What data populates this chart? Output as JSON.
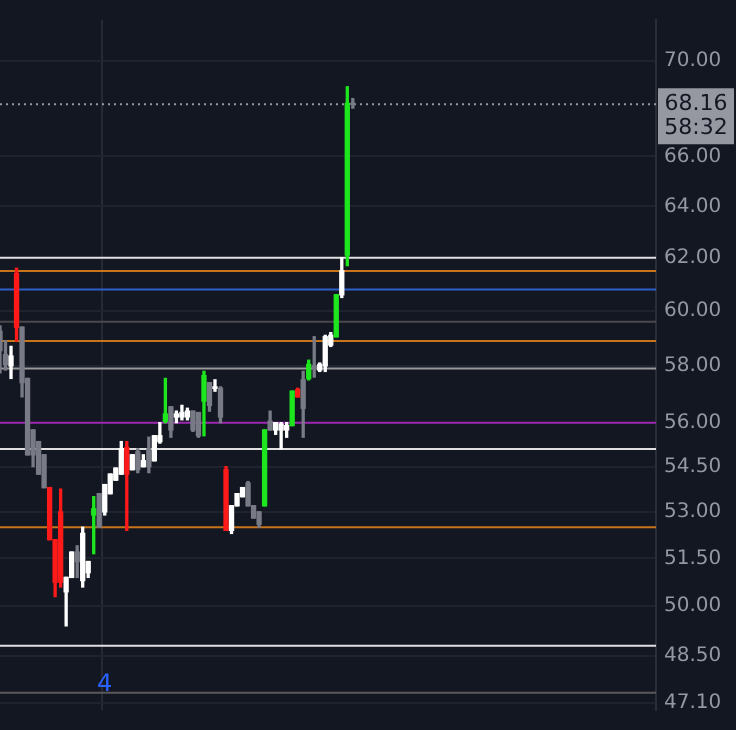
{
  "chart_data": {
    "type": "candlestick",
    "log": "y",
    "grid": true,
    "categories": [
      null,
      null,
      null,
      null,
      null,
      null,
      null,
      null,
      null,
      null,
      null,
      null,
      null,
      null,
      null,
      null,
      null,
      null,
      null,
      "4",
      null,
      null,
      null,
      null,
      null,
      null,
      null,
      null,
      null,
      null,
      null,
      null,
      null,
      null,
      null,
      null,
      null,
      null,
      null,
      null,
      null,
      null,
      null,
      null,
      null,
      null,
      null,
      null,
      null,
      null,
      null,
      null,
      null,
      null,
      null,
      null,
      null,
      null,
      null,
      null,
      null,
      null,
      null,
      null,
      null,
      null,
      null,
      null,
      null,
      null,
      null,
      null,
      null,
      null,
      null,
      null,
      null,
      null,
      null,
      null,
      null,
      null,
      null,
      null,
      null,
      null,
      null,
      null,
      null,
      null,
      null,
      null,
      null,
      null,
      null,
      null,
      null,
      null,
      null,
      null,
      null,
      null,
      null,
      null,
      null,
      null,
      null,
      null,
      null,
      null,
      null,
      null,
      null,
      null,
      null,
      null,
      null,
      null,
      null,
      null
    ],
    "ohlc": [
      [
        59.25,
        59.45,
        57.75,
        58.55
      ],
      [
        58.4,
        58.9,
        57.85,
        58.05
      ],
      [
        58.0,
        58.7,
        57.55,
        58.35
      ],
      [
        61.4,
        61.6,
        58.9,
        59.4
      ],
      [
        59.4,
        59.4,
        56.9,
        57.4
      ],
      [
        57.55,
        57.55,
        54.9,
        54.9
      ],
      [
        55.75,
        55.75,
        54.5,
        54.9
      ],
      [
        55.35,
        55.35,
        54.25,
        54.25
      ],
      [
        54.9,
        54.9,
        53.8,
        53.8
      ],
      [
        53.8,
        53.8,
        52.1,
        52.1
      ],
      [
        52.1,
        52.1,
        50.3,
        50.75
      ],
      [
        53.0,
        53.75,
        50.6,
        50.75
      ],
      [
        50.45,
        50.9,
        49.4,
        50.9
      ],
      [
        50.9,
        51.7,
        50.9,
        51.7
      ],
      [
        51.7,
        51.9,
        50.9,
        51.4
      ],
      [
        50.8,
        52.5,
        50.6,
        52.3
      ],
      [
        51.05,
        51.4,
        50.9,
        51.4
      ],
      [
        52.9,
        53.5,
        51.65,
        53.1
      ],
      [
        53.6,
        53.6,
        52.5,
        52.5
      ],
      [
        53.0,
        53.9,
        52.9,
        53.9
      ],
      [
        53.6,
        54.25,
        53.6,
        54.25
      ],
      [
        54.05,
        54.45,
        54.05,
        54.45
      ],
      [
        54.25,
        55.35,
        54.25,
        55.1
      ],
      [
        55.15,
        55.35,
        52.4,
        54.25
      ],
      [
        54.4,
        54.9,
        54.4,
        54.9
      ],
      [
        55.0,
        55.1,
        54.3,
        54.4
      ],
      [
        54.5,
        54.9,
        54.5,
        54.7
      ],
      [
        55.1,
        55.5,
        54.3,
        54.5
      ],
      [
        54.7,
        55.55,
        54.7,
        55.55
      ],
      [
        55.35,
        56.0,
        55.3,
        55.55
      ],
      [
        56.05,
        57.55,
        56.0,
        56.3
      ],
      [
        56.55,
        56.55,
        55.5,
        55.75
      ],
      [
        56.2,
        56.4,
        56.0,
        56.3
      ],
      [
        56.2,
        56.6,
        56.1,
        56.35
      ],
      [
        56.2,
        56.5,
        56.1,
        56.4
      ],
      [
        56.4,
        56.4,
        55.7,
        55.75
      ],
      [
        56.35,
        56.35,
        55.5,
        55.55
      ],
      [
        56.75,
        57.8,
        55.55,
        57.65
      ],
      [
        57.4,
        57.4,
        56.4,
        56.6
      ],
      [
        57.2,
        57.5,
        57.1,
        57.25
      ],
      [
        57.2,
        57.25,
        56.0,
        56.2
      ],
      [
        54.4,
        54.5,
        52.4,
        52.4
      ],
      [
        52.4,
        53.2,
        52.3,
        53.2
      ],
      [
        53.2,
        53.6,
        53.2,
        53.6
      ],
      [
        53.5,
        53.8,
        53.5,
        53.8
      ],
      [
        53.95,
        54.0,
        53.2,
        53.2
      ],
      [
        53.2,
        53.2,
        52.8,
        52.8
      ],
      [
        53.0,
        53.0,
        52.5,
        52.6
      ],
      [
        53.2,
        55.75,
        53.2,
        55.75
      ],
      [
        56.05,
        56.4,
        55.75,
        55.75
      ],
      [
        55.75,
        56.0,
        55.6,
        56.0
      ],
      [
        55.75,
        56.0,
        55.1,
        55.95
      ],
      [
        55.75,
        56.0,
        55.5,
        55.9
      ],
      [
        55.9,
        57.1,
        55.9,
        57.1
      ],
      [
        57.15,
        57.2,
        56.9,
        56.9
      ],
      [
        57.5,
        57.8,
        55.5,
        56.5
      ],
      [
        57.55,
        58.2,
        57.5,
        58.05
      ],
      [
        58.0,
        59.05,
        57.6,
        57.9
      ],
      [
        57.85,
        58.1,
        57.8,
        58.05
      ],
      [
        58.0,
        59.1,
        57.8,
        59.05
      ],
      [
        58.75,
        59.2,
        58.7,
        59.1
      ],
      [
        59.05,
        60.6,
        59.05,
        60.6
      ],
      [
        60.6,
        62.0,
        60.5,
        61.5
      ],
      [
        62.1,
        68.9,
        61.7,
        68.2
      ],
      [
        68.2,
        68.4,
        68.0,
        68.16
      ],
      null,
      null,
      null,
      null,
      null,
      null,
      null,
      null,
      null,
      null,
      null,
      null,
      null,
      null,
      null,
      null,
      null,
      null,
      null,
      null,
      null,
      null,
      null,
      null,
      null,
      null,
      null,
      null,
      null,
      null,
      null,
      null,
      null,
      null,
      null,
      null,
      null,
      null,
      null,
      null,
      null,
      null,
      null,
      null,
      null,
      null,
      null,
      null,
      null,
      null,
      null,
      null,
      null,
      null,
      null
    ],
    "colors": [
      "#787b86",
      "#787b86",
      "#ffffff",
      "#ff1a1a",
      "#787b86",
      "#787b86",
      "#787b86",
      "#787b86",
      "#787b86",
      "#ff1a1a",
      "#ff1a1a",
      "#ff1a1a",
      "#ffffff",
      "#ffffff",
      "#787b86",
      "#ffffff",
      "#ffffff",
      "#1ee61e",
      "#787b86",
      "#ffffff",
      "#ffffff",
      "#ffffff",
      "#ffffff",
      "#ff1a1a",
      "#ffffff",
      "#787b86",
      "#ffffff",
      "#787b86",
      "#ffffff",
      "#ffffff",
      "#1ee61e",
      "#787b86",
      "#ffffff",
      "#ffffff",
      "#ffffff",
      "#787b86",
      "#787b86",
      "#1ee61e",
      "#787b86",
      "#ffffff",
      "#787b86",
      "#ff1a1a",
      "#ffffff",
      "#ffffff",
      "#ffffff",
      "#787b86",
      "#787b86",
      "#787b86",
      "#1ee61e",
      "#787b86",
      "#ffffff",
      "#ffffff",
      "#ffffff",
      "#1ee61e",
      "#ff1a1a",
      "#787b86",
      "#1ee61e",
      "#787b86",
      "#ffffff",
      "#ffffff",
      "#ffffff",
      "#1ee61e",
      "#ffffff",
      "#1ee61e",
      "#787b86",
      null,
      null,
      null,
      null,
      null,
      null,
      null,
      null,
      null,
      null,
      null,
      null,
      null,
      null,
      null,
      null,
      null,
      null,
      null,
      null,
      null,
      null,
      null,
      null,
      null,
      null,
      null,
      null,
      null,
      null,
      null,
      null,
      null,
      null,
      null,
      null,
      null,
      null,
      null,
      null,
      null,
      null,
      null,
      null,
      null,
      null,
      null,
      null,
      null,
      null,
      null,
      null,
      null,
      null,
      null
    ],
    "ylim": [
      46.9,
      71.8
    ],
    "yticks": [
      {
        "value": 47.1,
        "label": "47.10"
      },
      {
        "value": 48.5,
        "label": "48.50"
      },
      {
        "value": 50,
        "label": "50.00"
      },
      {
        "value": 51.5,
        "label": "51.50"
      },
      {
        "value": 53,
        "label": "53.00"
      },
      {
        "value": 54.5,
        "label": "54.50"
      },
      {
        "value": 56,
        "label": "56.00"
      },
      {
        "value": 58,
        "label": "58.00"
      },
      {
        "value": 60,
        "label": "60.00"
      },
      {
        "value": 62,
        "label": "62.00"
      },
      {
        "value": 64,
        "label": "64.00"
      },
      {
        "value": 66,
        "label": "66.00"
      },
      {
        "value": 70,
        "label": "70.00"
      }
    ],
    "ref_lines": [
      {
        "axis": "y",
        "value": 68.16,
        "label": "68.16",
        "color": "#9598a1",
        "line_style": "dotted"
      },
      {
        "axis": "y",
        "value": 62.0,
        "color": "#e0e0e0"
      },
      {
        "axis": "y",
        "value": 61.5,
        "color": "#c8741a"
      },
      {
        "axis": "y",
        "value": 60.8,
        "color": "#2f5fc8"
      },
      {
        "axis": "y",
        "value": 59.6,
        "color": "#4a4a4a"
      },
      {
        "axis": "y",
        "value": 58.9,
        "color": "#c8741a"
      },
      {
        "axis": "y",
        "value": 57.9,
        "color": "#9a9a9a"
      },
      {
        "axis": "y",
        "value": 56.0,
        "color": "#9c27b0"
      },
      {
        "axis": "y",
        "value": 55.1,
        "color": "#e0e0e0"
      },
      {
        "axis": "y",
        "value": 52.5,
        "color": "#c8741a"
      },
      {
        "axis": "y",
        "value": 48.8,
        "color": "#e0e0e0"
      },
      {
        "axis": "y",
        "value": 47.4,
        "color": "#5a5a5a"
      }
    ],
    "annotations": [
      "58:32"
    ]
  }
}
